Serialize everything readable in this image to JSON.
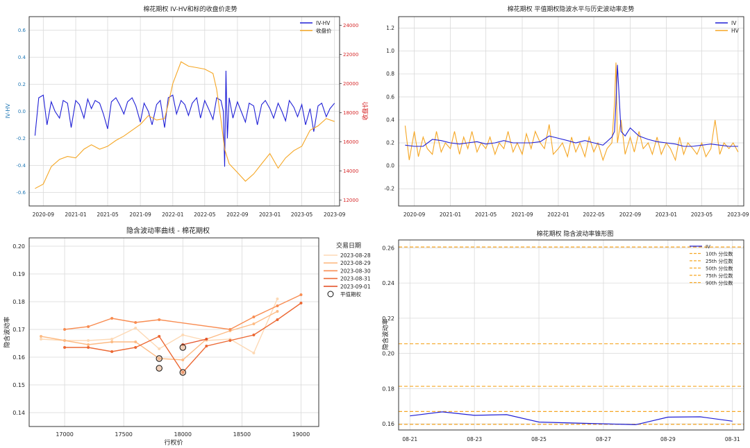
{
  "chart_data": [
    {
      "id": "p1",
      "type": "line",
      "title": "棉花期权 IV-HV和标的收盘价走势",
      "xlabel": "",
      "ylabel": "IV-HV",
      "y2label": "收盘价",
      "x_ticks": [
        "2020-09",
        "2021-01",
        "2021-05",
        "2021-09",
        "2022-01",
        "2022-05",
        "2022-09",
        "2023-01",
        "2023-05",
        "2023-09"
      ],
      "ylim": [
        -0.7,
        0.7
      ],
      "y_ticks": [
        -0.6,
        -0.4,
        -0.2,
        0.0,
        0.2,
        0.4,
        0.6
      ],
      "y2lim": [
        11600,
        24600
      ],
      "y2_ticks": [
        12000,
        14000,
        16000,
        18000,
        20000,
        22000,
        24000
      ],
      "legend": "top-right",
      "grid": true,
      "series": [
        {
          "name": "IV-HV",
          "axis": "left",
          "color": "#1f1fd6",
          "x": [
            "2020-08-01",
            "2020-08-15",
            "2020-09-01",
            "2020-09-15",
            "2020-10-01",
            "2020-10-15",
            "2020-11-01",
            "2020-11-15",
            "2020-12-01",
            "2020-12-15",
            "2021-01-01",
            "2021-01-15",
            "2021-02-01",
            "2021-02-15",
            "2021-03-01",
            "2021-03-15",
            "2021-04-01",
            "2021-04-15",
            "2021-05-01",
            "2021-05-15",
            "2021-06-01",
            "2021-06-15",
            "2021-07-01",
            "2021-07-15",
            "2021-08-01",
            "2021-08-15",
            "2021-09-01",
            "2021-09-15",
            "2021-10-01",
            "2021-10-15",
            "2021-11-01",
            "2021-11-15",
            "2021-12-01",
            "2021-12-15",
            "2022-01-01",
            "2022-01-15",
            "2022-02-01",
            "2022-02-15",
            "2022-03-01",
            "2022-03-15",
            "2022-04-01",
            "2022-04-15",
            "2022-05-01",
            "2022-05-15",
            "2022-06-01",
            "2022-06-15",
            "2022-07-01",
            "2022-07-10",
            "2022-07-15",
            "2022-07-20",
            "2022-07-25",
            "2022-08-01",
            "2022-08-15",
            "2022-09-01",
            "2022-09-15",
            "2022-10-01",
            "2022-10-15",
            "2022-11-01",
            "2022-11-15",
            "2022-12-01",
            "2022-12-15",
            "2023-01-01",
            "2023-01-15",
            "2023-02-01",
            "2023-02-15",
            "2023-03-01",
            "2023-03-15",
            "2023-04-01",
            "2023-04-15",
            "2023-05-01",
            "2023-05-15",
            "2023-06-01",
            "2023-06-15",
            "2023-07-01",
            "2023-07-15",
            "2023-08-01",
            "2023-08-15",
            "2023-09-01"
          ],
          "values": [
            -0.18,
            0.1,
            0.12,
            -0.1,
            0.07,
            0.0,
            -0.05,
            0.08,
            0.06,
            -0.12,
            0.08,
            0.05,
            -0.05,
            0.09,
            0.02,
            0.08,
            0.06,
            -0.02,
            -0.13,
            0.07,
            0.1,
            0.05,
            -0.02,
            0.07,
            0.1,
            0.04,
            -0.08,
            0.06,
            0.0,
            -0.1,
            0.05,
            0.08,
            -0.12,
            0.1,
            0.12,
            -0.02,
            0.08,
            0.05,
            -0.03,
            0.06,
            0.1,
            -0.05,
            0.08,
            0.02,
            -0.06,
            0.1,
            0.08,
            0.0,
            -0.41,
            0.3,
            -0.2,
            0.1,
            -0.05,
            0.07,
            0.0,
            -0.08,
            0.06,
            0.04,
            -0.1,
            0.05,
            0.08,
            0.02,
            -0.05,
            0.06,
            0.0,
            -0.07,
            0.08,
            0.03,
            -0.04,
            0.05,
            -0.1,
            0.02,
            -0.15,
            0.04,
            0.06,
            -0.04,
            0.02,
            0.06
          ]
        },
        {
          "name": "收盘价",
          "axis": "right",
          "color": "#f5a623",
          "x": [
            "2020-08-01",
            "2020-09-01",
            "2020-10-01",
            "2020-11-01",
            "2020-12-01",
            "2021-01-01",
            "2021-02-01",
            "2021-03-01",
            "2021-04-01",
            "2021-05-01",
            "2021-06-01",
            "2021-07-01",
            "2021-08-01",
            "2021-09-01",
            "2021-10-01",
            "2021-11-01",
            "2021-12-01",
            "2021-12-15",
            "2022-01-01",
            "2022-02-01",
            "2022-03-01",
            "2022-04-01",
            "2022-05-01",
            "2022-06-01",
            "2022-06-15",
            "2022-07-01",
            "2022-07-15",
            "2022-08-01",
            "2022-09-01",
            "2022-10-01",
            "2022-11-01",
            "2022-12-01",
            "2023-01-01",
            "2023-02-01",
            "2023-03-01",
            "2023-04-01",
            "2023-05-01",
            "2023-06-01",
            "2023-07-01",
            "2023-08-01",
            "2023-09-01"
          ],
          "values": [
            12800,
            13100,
            14300,
            14800,
            15000,
            14900,
            15500,
            15800,
            15500,
            15700,
            16100,
            16400,
            16800,
            17200,
            17800,
            17500,
            17600,
            18600,
            20000,
            21500,
            21200,
            21100,
            21000,
            20700,
            19600,
            17500,
            15500,
            14500,
            13900,
            13300,
            13800,
            14500,
            15200,
            14200,
            14900,
            15400,
            15700,
            16800,
            17100,
            17600,
            17400
          ]
        }
      ]
    },
    {
      "id": "p2",
      "type": "line",
      "title": "棉花期权 平值期权隐波水平与历史波动率走势",
      "xlabel": "",
      "ylabel": "",
      "x_ticks": [
        "2020-09",
        "2021-01",
        "2021-05",
        "2021-09",
        "2022-01",
        "2022-05",
        "2022-09",
        "2023-01",
        "2023-05",
        "2023-09"
      ],
      "ylim": [
        -0.35,
        1.3
      ],
      "y_ticks": [
        -0.2,
        0.0,
        0.2,
        0.4,
        0.6,
        0.8,
        1.0,
        1.2
      ],
      "legend": "top-right",
      "grid": true,
      "series": [
        {
          "name": "IV",
          "color": "#1f1fd6",
          "x": [
            "2020-08-01",
            "2020-09-01",
            "2020-10-01",
            "2020-11-01",
            "2020-12-01",
            "2021-01-01",
            "2021-02-01",
            "2021-03-01",
            "2021-04-01",
            "2021-05-01",
            "2021-06-01",
            "2021-07-01",
            "2021-08-01",
            "2021-09-01",
            "2021-10-01",
            "2021-11-01",
            "2021-12-01",
            "2022-01-01",
            "2022-02-01",
            "2022-03-01",
            "2022-04-01",
            "2022-05-01",
            "2022-06-01",
            "2022-07-01",
            "2022-07-10",
            "2022-07-15",
            "2022-07-20",
            "2022-08-01",
            "2022-08-15",
            "2022-09-01",
            "2022-10-01",
            "2022-11-01",
            "2022-12-01",
            "2023-01-01",
            "2023-02-01",
            "2023-03-01",
            "2023-04-01",
            "2023-05-01",
            "2023-06-01",
            "2023-07-01",
            "2023-08-01",
            "2023-09-01"
          ],
          "values": [
            0.18,
            0.17,
            0.17,
            0.23,
            0.22,
            0.2,
            0.19,
            0.2,
            0.21,
            0.19,
            0.2,
            0.22,
            0.2,
            0.2,
            0.2,
            0.21,
            0.26,
            0.24,
            0.22,
            0.2,
            0.22,
            0.2,
            0.18,
            0.25,
            0.3,
            0.55,
            0.88,
            0.3,
            0.26,
            0.33,
            0.26,
            0.23,
            0.21,
            0.2,
            0.19,
            0.17,
            0.17,
            0.18,
            0.19,
            0.18,
            0.17,
            0.17
          ]
        },
        {
          "name": "HV",
          "color": "#f5a623",
          "x": [
            "2020-08-01",
            "2020-08-15",
            "2020-09-01",
            "2020-09-15",
            "2020-10-01",
            "2020-10-15",
            "2020-11-01",
            "2020-11-15",
            "2020-12-01",
            "2020-12-15",
            "2021-01-01",
            "2021-01-15",
            "2021-02-01",
            "2021-02-15",
            "2021-03-01",
            "2021-03-15",
            "2021-04-01",
            "2021-04-15",
            "2021-05-01",
            "2021-05-15",
            "2021-06-01",
            "2021-06-15",
            "2021-07-01",
            "2021-07-15",
            "2021-08-01",
            "2021-08-15",
            "2021-09-01",
            "2021-09-15",
            "2021-10-01",
            "2021-10-15",
            "2021-11-01",
            "2021-11-15",
            "2021-12-01",
            "2021-12-15",
            "2022-01-01",
            "2022-01-15",
            "2022-02-01",
            "2022-02-15",
            "2022-03-01",
            "2022-03-15",
            "2022-04-01",
            "2022-04-15",
            "2022-05-01",
            "2022-05-15",
            "2022-06-01",
            "2022-06-15",
            "2022-07-01",
            "2022-07-10",
            "2022-07-15",
            "2022-07-20",
            "2022-08-01",
            "2022-08-15",
            "2022-09-01",
            "2022-09-15",
            "2022-10-01",
            "2022-10-15",
            "2022-11-01",
            "2022-11-15",
            "2022-12-01",
            "2022-12-15",
            "2023-01-01",
            "2023-01-15",
            "2023-02-01",
            "2023-02-15",
            "2023-03-01",
            "2023-03-15",
            "2023-04-01",
            "2023-04-15",
            "2023-05-01",
            "2023-05-15",
            "2023-06-01",
            "2023-06-15",
            "2023-07-01",
            "2023-07-15",
            "2023-08-01",
            "2023-08-15",
            "2023-09-01"
          ],
          "values": [
            0.35,
            0.05,
            0.3,
            0.08,
            0.25,
            0.15,
            0.1,
            0.3,
            0.12,
            0.2,
            0.15,
            0.3,
            0.1,
            0.25,
            0.15,
            0.3,
            0.12,
            0.2,
            0.15,
            0.25,
            0.1,
            0.2,
            0.15,
            0.3,
            0.12,
            0.2,
            0.1,
            0.28,
            0.15,
            0.3,
            0.2,
            0.15,
            0.36,
            0.1,
            0.15,
            0.2,
            0.08,
            0.25,
            0.12,
            0.2,
            0.08,
            0.25,
            0.12,
            0.2,
            0.05,
            0.15,
            0.2,
            0.55,
            0.9,
            0.2,
            0.4,
            0.1,
            0.25,
            0.12,
            0.3,
            0.15,
            0.2,
            0.1,
            0.25,
            0.1,
            0.2,
            0.15,
            0.05,
            0.25,
            0.1,
            0.2,
            0.15,
            0.1,
            0.2,
            0.08,
            0.15,
            0.4,
            0.1,
            0.2,
            0.15,
            0.2,
            0.12
          ]
        }
      ]
    },
    {
      "id": "p3",
      "type": "line",
      "title": "隐含波动率曲线 - 棉花期权",
      "xlabel": "行权价",
      "ylabel": "隐含波动率",
      "xlim": [
        16700,
        19150
      ],
      "x_ticks": [
        17000,
        17500,
        18000,
        18500,
        19000
      ],
      "ylim": [
        0.135,
        0.203
      ],
      "y_ticks": [
        0.14,
        0.15,
        0.16,
        0.17,
        0.18,
        0.19,
        0.2
      ],
      "legend_title": "交易日期",
      "legend": "top-right",
      "grid": true,
      "x": [
        16800,
        17000,
        17200,
        17400,
        17600,
        17800,
        18000,
        18200,
        18400,
        18600,
        18800,
        19000
      ],
      "series": [
        {
          "name": "2023-08-28",
          "color": "#fdd9b5",
          "values": [
            0.1665,
            0.166,
            0.166,
            0.1665,
            0.1705,
            0.163,
            0.168,
            0.166,
            0.1665,
            0.1615,
            0.181,
            null
          ]
        },
        {
          "name": "2023-08-29",
          "color": "#fdbb84",
          "values": [
            0.1675,
            0.166,
            0.1645,
            0.1655,
            0.1655,
            0.1595,
            0.159,
            0.1665,
            0.1695,
            0.172,
            0.1765,
            null
          ]
        },
        {
          "name": "2023-08-30",
          "color": "#f88c51",
          "values": [
            null,
            0.17,
            0.171,
            0.174,
            0.1725,
            0.1735,
            null,
            null,
            0.17,
            0.1745,
            0.1785,
            0.1825
          ]
        },
        {
          "name": "2023-08-31",
          "color": "#ec6833",
          "values": [
            null,
            0.1635,
            0.1635,
            0.162,
            0.1635,
            0.1675,
            0.1545,
            0.164,
            0.166,
            0.168,
            0.1735,
            0.1795
          ]
        },
        {
          "name": "2023-09-01",
          "color": "#e4542c",
          "values": [
            null,
            null,
            null,
            null,
            null,
            null,
            0.1645,
            0.1665,
            null,
            null,
            null,
            null
          ]
        }
      ],
      "atm_label": "平值期权",
      "atm_points": [
        {
          "x": 17800,
          "y": 0.1595
        },
        {
          "x": 17800,
          "y": 0.156
        },
        {
          "x": 18000,
          "y": 0.1635
        },
        {
          "x": 18000,
          "y": 0.1545
        }
      ]
    },
    {
      "id": "p4",
      "type": "line",
      "title": "棉花期权 隐含波动率锥形图",
      "xlabel": "",
      "ylabel": "隐含波动率",
      "x_ticks": [
        "08-21",
        "08-23",
        "08-25",
        "08-27",
        "08-29",
        "08-31"
      ],
      "x_dates": [
        "08-21",
        "08-22",
        "08-23",
        "08-24",
        "08-25",
        "08-26",
        "08-27",
        "08-28",
        "08-29",
        "08-30",
        "08-31"
      ],
      "ylim": [
        0.1565,
        0.2645
      ],
      "y_ticks": [
        0.16,
        0.18,
        0.2,
        0.22,
        0.24,
        0.26
      ],
      "legend": "top-right",
      "grid": true,
      "series": [
        {
          "name": "IV",
          "color": "#1f1fd6",
          "values": [
            0.1645,
            0.1668,
            0.1648,
            0.1652,
            0.161,
            0.1605,
            0.16,
            0.1595,
            0.1638,
            0.164,
            0.1615
          ]
        }
      ],
      "quantiles": [
        {
          "name": "10th 分位数",
          "color": "#f5a623",
          "value": 0.1597
        },
        {
          "name": "25th 分位数",
          "color": "#f5a623",
          "value": 0.167
        },
        {
          "name": "50th 分位数",
          "color": "#f5a623",
          "value": 0.1813
        },
        {
          "name": "75th 分位数",
          "color": "#f5a623",
          "value": 0.2055
        },
        {
          "name": "90th 分位数",
          "color": "#f5a623",
          "value": 0.2605
        }
      ]
    }
  ],
  "colors": {
    "left_axis_text": "#1f77b4",
    "right_axis_text": "#d62728",
    "grid": "#d9d9d9",
    "frame": "#333333"
  }
}
